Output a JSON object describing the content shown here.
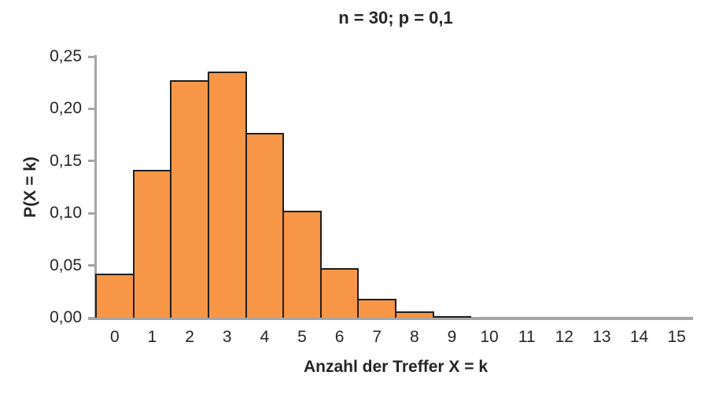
{
  "chart_data": {
    "type": "bar",
    "title": "n = 30; p = 0,1",
    "xlabel": "Anzahl der Treffer X = k",
    "ylabel": "P(X = k)",
    "categories": [
      "0",
      "1",
      "2",
      "3",
      "4",
      "5",
      "6",
      "7",
      "8",
      "9",
      "10",
      "11",
      "12",
      "13",
      "14",
      "15"
    ],
    "values": [
      0.0424,
      0.1413,
      0.2277,
      0.2361,
      0.1771,
      0.1023,
      0.0474,
      0.018,
      0.0058,
      0.0016,
      0.0004,
      0.0001,
      0.0,
      0.0,
      0.0,
      0.0
    ],
    "ylim": [
      0,
      0.25
    ],
    "ytick_step": 0.05,
    "ytick_labels": [
      "0,00",
      "0,05",
      "0,10",
      "0,15",
      "0,20",
      "0,25"
    ],
    "grid": false,
    "legend": "none",
    "colors": {
      "bar_fill": "#F79646",
      "bar_border": "#1F1F1F",
      "axis": "#A6A6A6",
      "text": "#262626",
      "background": "#FFFFFF"
    }
  }
}
